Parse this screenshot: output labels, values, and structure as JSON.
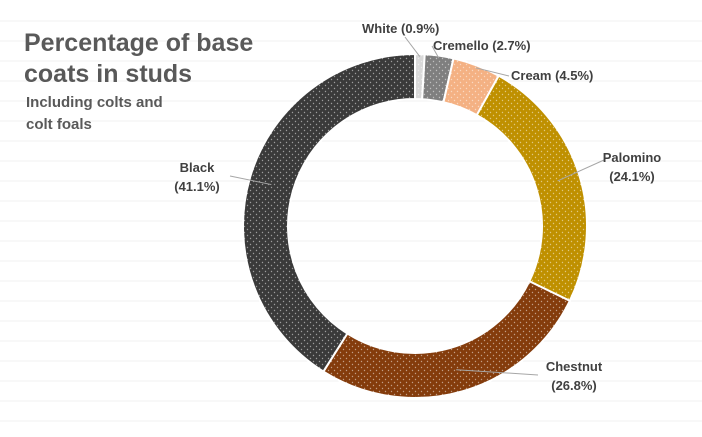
{
  "chart_data": {
    "type": "pie",
    "subtype": "doughnut",
    "title_lines": [
      "Percentage of base",
      "coats in studs"
    ],
    "subtitle_lines": [
      "Including colts and",
      "colt foals"
    ],
    "grid": false,
    "legend": "none",
    "slices": [
      {
        "name": "White",
        "label": "White (0.9%)",
        "value": 0.9,
        "color": "#d9d9d9"
      },
      {
        "name": "Cremello",
        "label": "Cremello (2.7%)",
        "value": 2.7,
        "color": "#7f7f7f"
      },
      {
        "name": "Cream",
        "label": "Cream (4.5%)",
        "value": 4.5,
        "color": "#f4b183"
      },
      {
        "name": "Palomino",
        "label": "Palomino",
        "label2": "(24.1%)",
        "value": 24.1,
        "color": "#bf9000"
      },
      {
        "name": "Chestnut",
        "label": "Chestnut",
        "label2": "(26.8%)",
        "value": 26.8,
        "color": "#843c0c"
      },
      {
        "name": "Black",
        "label": "Black",
        "label2": "(41.1%)",
        "value": 41.1,
        "color": "#3a3a3a"
      }
    ]
  }
}
